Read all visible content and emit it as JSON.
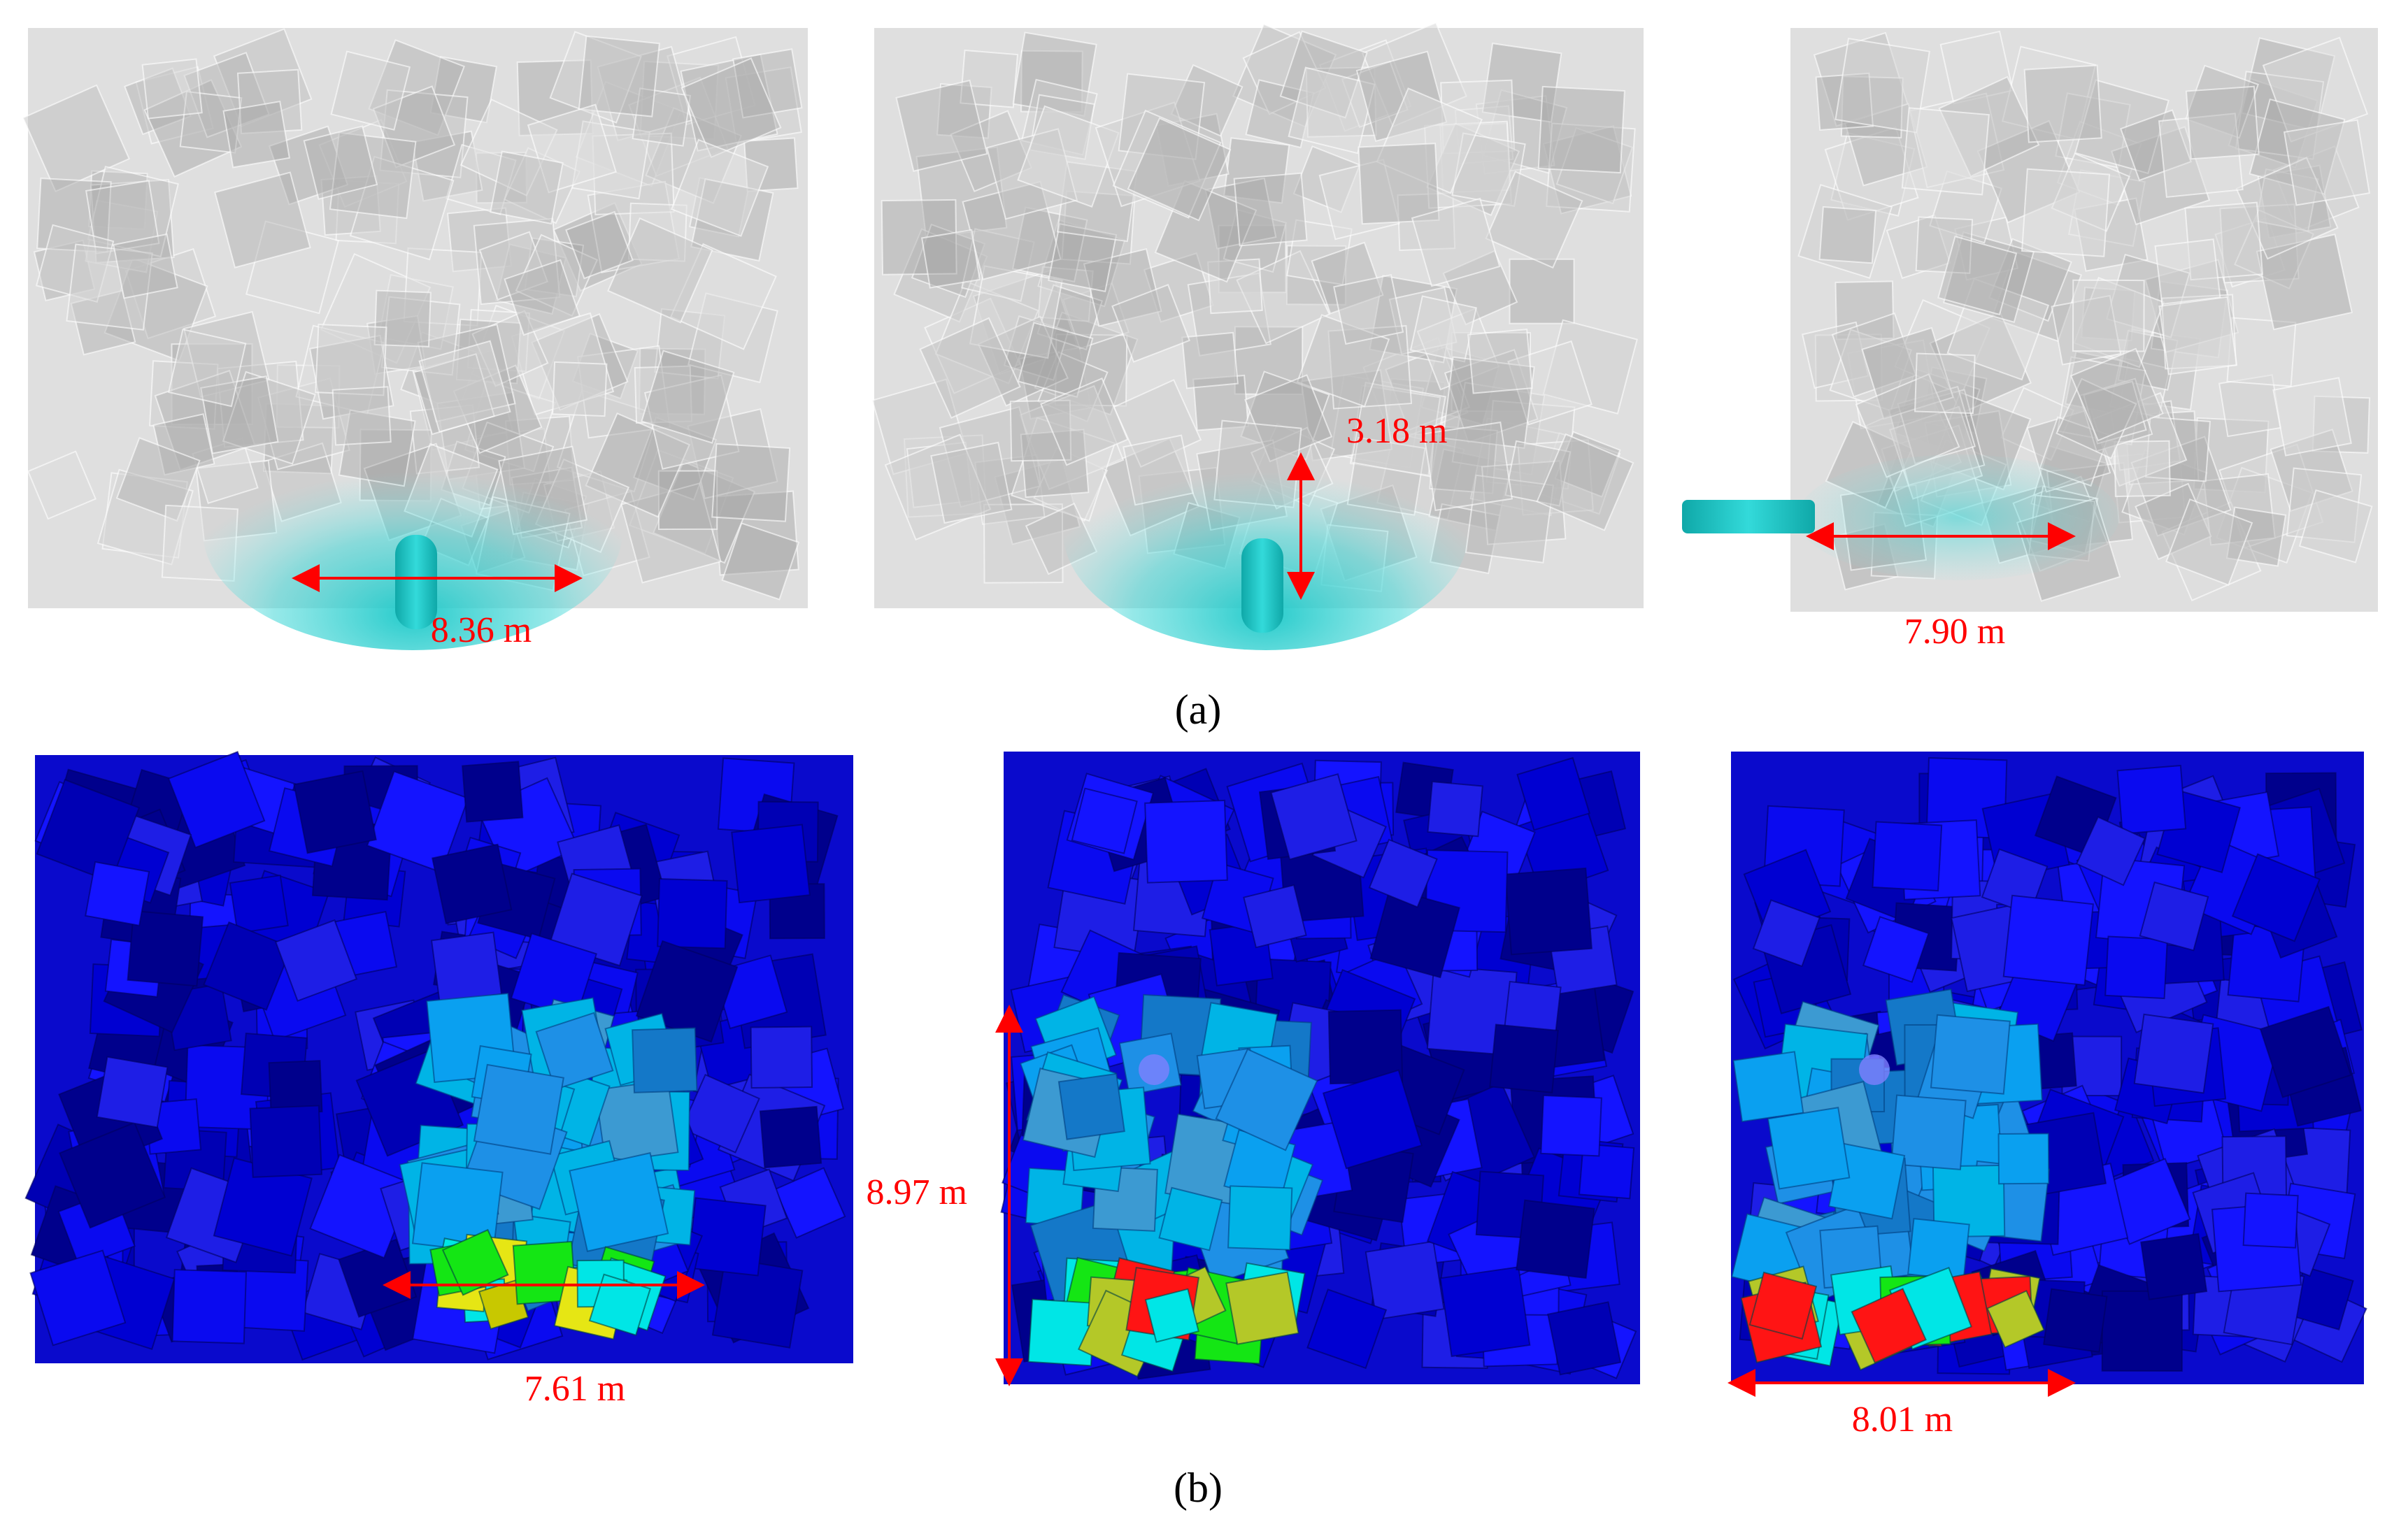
{
  "figure": {
    "row_a": {
      "caption": "(a)",
      "panels": [
        {
          "measurement": "8.36 m"
        },
        {
          "measurement": "3.18 m"
        },
        {
          "measurement": "7.90 m"
        }
      ]
    },
    "row_b": {
      "caption": "(b)",
      "panels": [
        {
          "measurement": "7.61 m"
        },
        {
          "measurement": "8.97 m"
        },
        {
          "measurement": "8.01 m"
        }
      ]
    }
  },
  "colors": {
    "annotation": "#ff0000",
    "debris_spray": "#19c8c8",
    "gray_block": "#9a9a9a",
    "blue_block": "#0a0af0",
    "dark_blue_block": "#00008c",
    "light_blue_block": "#1e90e6",
    "cyan_block": "#00e6e6",
    "green_block": "#14e614",
    "yellow_block": "#e6e614",
    "red_block": "#ff1414"
  }
}
